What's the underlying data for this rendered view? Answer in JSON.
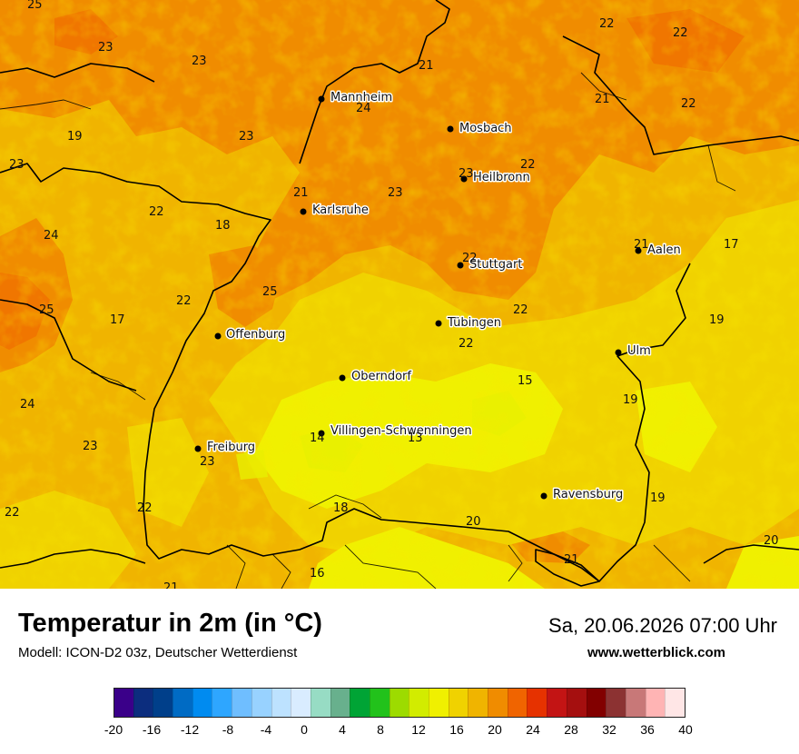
{
  "title": "Temperatur in 2m (in °C)",
  "model": "Modell: ICON-D2 03z, Deutscher Wetterdienst",
  "valid_time": "Sa, 20.06.2026 07:00 Uhr",
  "website": "www.wetterblick.com",
  "cities": [
    {
      "name": "Mannheim"
    },
    {
      "name": "Mosbach"
    },
    {
      "name": "Heilbronn"
    },
    {
      "name": "Karlsruhe"
    },
    {
      "name": "Aalen"
    },
    {
      "name": "Stuttgart"
    },
    {
      "name": "Tübingen"
    },
    {
      "name": "Offenburg"
    },
    {
      "name": "Ulm"
    },
    {
      "name": "Oberndorf"
    },
    {
      "name": "Villingen-Schwenningen"
    },
    {
      "name": "Freiburg"
    },
    {
      "name": "Ravensburg"
    }
  ],
  "temperature_labels": [
    "25",
    "23",
    "23",
    "22",
    "22",
    "21",
    "19",
    "23",
    "24",
    "21",
    "22",
    "23",
    "22",
    "23",
    "21",
    "23",
    "22",
    "18",
    "24",
    "21",
    "17",
    "22",
    "22",
    "25",
    "25",
    "17",
    "22",
    "19",
    "22",
    "24",
    "15",
    "23",
    "14",
    "13",
    "23",
    "19",
    "18",
    "22",
    "20",
    "19",
    "22",
    "20",
    "16",
    "21",
    "21"
  ],
  "legend": {
    "colors": [
      "#3a0089",
      "#0c2d7e",
      "#003f8a",
      "#006bc4",
      "#008bf0",
      "#2ea6ff",
      "#6fbeff",
      "#98d2ff",
      "#bde2ff",
      "#d9ecff",
      "#97dcc4",
      "#68b08d",
      "#00a435",
      "#22c21b",
      "#9ddb00",
      "#d2ec00",
      "#f0f000",
      "#f0d200",
      "#f0b400",
      "#f08c00",
      "#f06400",
      "#e63200",
      "#c31414",
      "#a50f0f",
      "#820000",
      "#8c3232",
      "#c87878",
      "#ffb4b4",
      "#ffe6e6"
    ],
    "ticks": [
      "-20",
      "-16",
      "-12",
      "-8",
      "-4",
      "0",
      "4",
      "8",
      "12",
      "16",
      "20",
      "24",
      "28",
      "32",
      "36",
      "40"
    ],
    "min": -20,
    "max": 40
  }
}
